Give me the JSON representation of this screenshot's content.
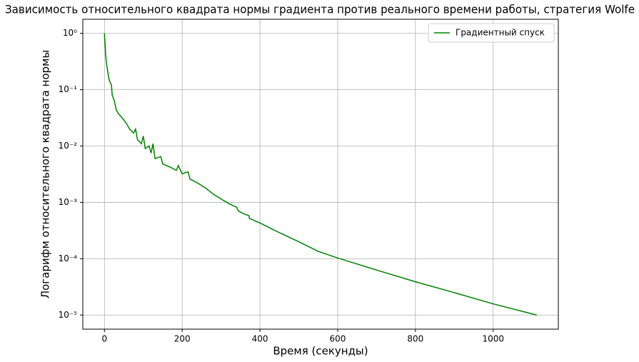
{
  "chart_data": {
    "type": "line",
    "title": "Зависимость относительного квадрата нормы градиента против реального времени работы, стратегия Wolfe",
    "xlabel": "Время (секунды)",
    "ylabel": "Логарифм относительного квадрата нормы",
    "x": [
      0,
      3,
      5,
      8,
      12,
      18,
      20,
      25,
      30,
      35,
      45,
      55,
      65,
      75,
      80,
      85,
      95,
      100,
      105,
      115,
      120,
      125,
      130,
      145,
      150,
      170,
      185,
      190,
      200,
      215,
      220,
      240,
      260,
      280,
      300,
      320,
      340,
      345,
      360,
      372,
      373,
      400,
      450,
      500,
      550,
      600,
      700,
      800,
      900,
      1000,
      1112
    ],
    "series": [
      {
        "name": "Градиентный спуск",
        "color": "#008000",
        "values": [
          1.0,
          0.43,
          0.3,
          0.22,
          0.15,
          0.12,
          0.08,
          0.065,
          0.045,
          0.038,
          0.032,
          0.026,
          0.02,
          0.017,
          0.02,
          0.013,
          0.011,
          0.015,
          0.009,
          0.01,
          0.0075,
          0.011,
          0.006,
          0.0065,
          0.0048,
          0.0042,
          0.0037,
          0.0045,
          0.0032,
          0.0035,
          0.0026,
          0.0022,
          0.0018,
          0.0014,
          0.00115,
          0.00095,
          0.00082,
          0.0007,
          0.00062,
          0.00058,
          0.00052,
          0.00043,
          0.00029,
          0.0002,
          0.000135,
          0.000103,
          6.3e-05,
          3.9e-05,
          2.5e-05,
          1.58e-05,
          1e-05
        ]
      }
    ],
    "xlim": [
      -55.6,
      1167.6
    ],
    "ylim": [
      5.62e-06,
      1.778
    ],
    "xticks": [
      0,
      200,
      400,
      600,
      800,
      1000
    ],
    "yticks": [
      {
        "value": 1e-05,
        "label": "10⁻⁵"
      },
      {
        "value": 0.0001,
        "label": "10⁻⁴"
      },
      {
        "value": 0.001,
        "label": "10⁻³"
      },
      {
        "value": 0.01,
        "label": "10⁻²"
      },
      {
        "value": 0.1,
        "label": "10⁻¹"
      },
      {
        "value": 1,
        "label": "10⁰"
      }
    ],
    "log_y": true,
    "grid": true,
    "legend": "upper right"
  }
}
